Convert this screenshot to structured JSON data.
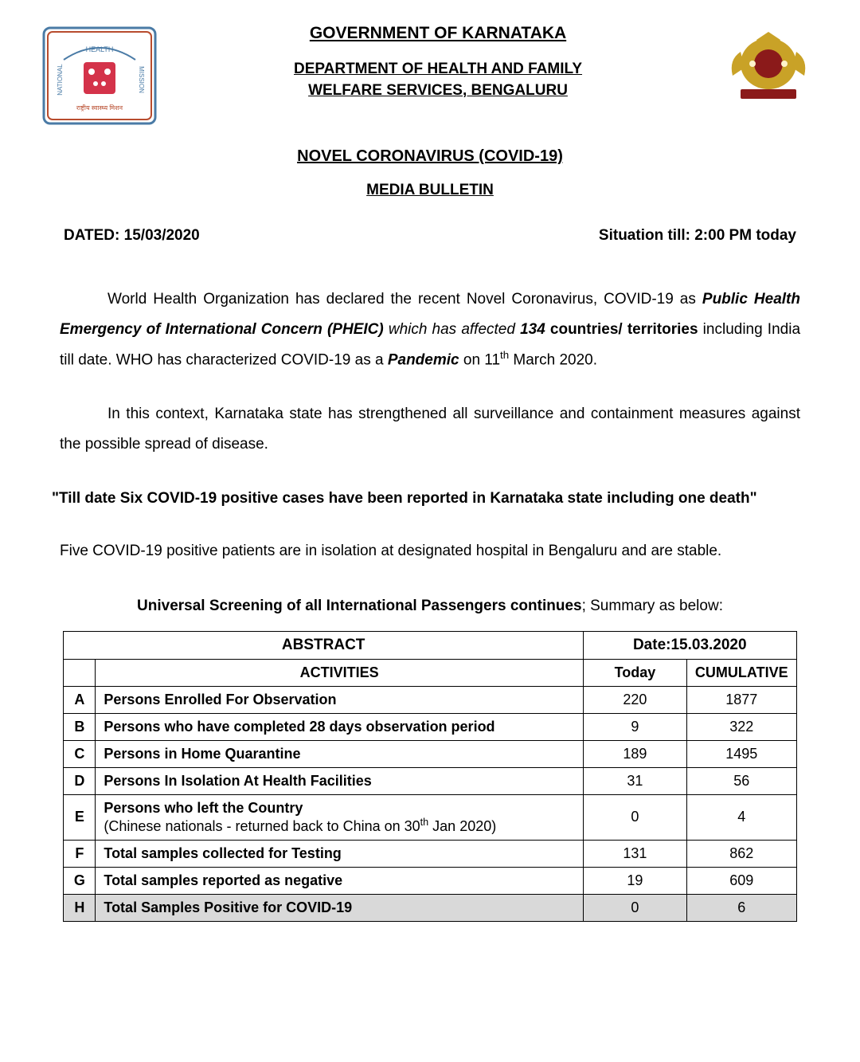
{
  "header": {
    "gov_title": "GOVERNMENT OF KARNATAKA",
    "dept_title_line1": "DEPARTMENT OF HEALTH AND FAMILY",
    "dept_title_line2": "WELFARE SERVICES, BENGALURU",
    "subject": "NOVEL CORONAVIRUS (COVID-19)",
    "bulletin": "MEDIA BULLETIN",
    "dated_label": "DATED",
    "dated_value": "15/03/2020",
    "situation": "Situation till: 2:00 PM today"
  },
  "body": {
    "screening_title_bold": "Universal Screening of all International Passengers continues",
    "screening_title_rest": "; Summary as below:"
  },
  "table": {
    "abstract_label": "ABSTRACT",
    "date_label": "Date:15.03.2020",
    "activities_header": "ACTIVITIES",
    "today_header": "Today",
    "cumulative_header": "CUMULATIVE",
    "rows": [
      {
        "id": "A",
        "activity": "Persons Enrolled For Observation",
        "sub": "",
        "today": "220",
        "cumulative": "1877"
      },
      {
        "id": "B",
        "activity": "Persons who have completed 28 days observation period",
        "sub": "",
        "today": "9",
        "cumulative": "322"
      },
      {
        "id": "C",
        "activity": "Persons in Home Quarantine",
        "sub": "",
        "today": "189",
        "cumulative": "1495"
      },
      {
        "id": "D",
        "activity": "Persons In Isolation At Health Facilities",
        "sub": "",
        "today": "31",
        "cumulative": "56"
      },
      {
        "id": "E",
        "activity": "Persons who left the Country",
        "sub": "(Chinese nationals - returned back to China on 30th Jan 2020)",
        "today": "0",
        "cumulative": "4"
      },
      {
        "id": "F",
        "activity": "Total samples collected for Testing",
        "sub": "",
        "today": "131",
        "cumulative": "862"
      },
      {
        "id": "G",
        "activity": "Total samples reported as negative",
        "sub": "",
        "today": "19",
        "cumulative": "609"
      },
      {
        "id": "H",
        "activity": "Total Samples Positive for COVID-19",
        "sub": "",
        "today": "0",
        "cumulative": "6",
        "highlight": true
      }
    ]
  },
  "colors": {
    "highlight_bg": "#d9d9d9",
    "text": "#000000",
    "background": "#ffffff"
  }
}
